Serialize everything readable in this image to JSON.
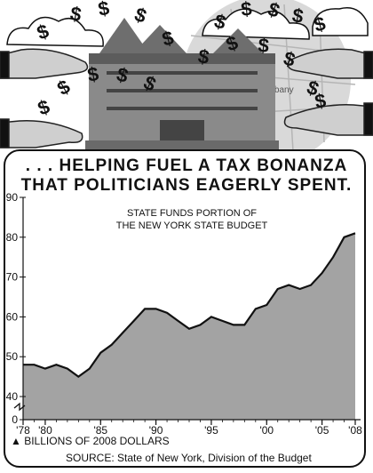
{
  "headline": {
    "line1": ". . . HELPING FUEL A TAX BONANZA",
    "line2": "THAT POLITICIANS EAGERLY SPENT."
  },
  "illustration": {
    "map_label": "Albany",
    "glyph": "$",
    "icons": [
      "hand-offering-icon",
      "dollar-sign-icon",
      "capitol-building-icon",
      "cloud-icon",
      "map-icon"
    ]
  },
  "chart_data": {
    "type": "area",
    "title": "STATE FUNDS PORTION OF",
    "subtitle": "THE NEW YORK STATE BUDGET",
    "x": [
      1978,
      1979,
      1980,
      1981,
      1982,
      1983,
      1984,
      1985,
      1986,
      1987,
      1988,
      1989,
      1990,
      1991,
      1992,
      1993,
      1994,
      1995,
      1996,
      1997,
      1998,
      1999,
      2000,
      2001,
      2002,
      2003,
      2004,
      2005,
      2006,
      2007,
      2008
    ],
    "series": [
      {
        "values": [
          48,
          48,
          47,
          48,
          47,
          45,
          47,
          51,
          53,
          56,
          59,
          62,
          62,
          61,
          59,
          57,
          58,
          60,
          59,
          58,
          58,
          62,
          63,
          67,
          68,
          67,
          68,
          71,
          75,
          80,
          81
        ]
      }
    ],
    "xtick_values": [
      1978,
      1980,
      1985,
      1990,
      1995,
      2000,
      2005,
      2008
    ],
    "xtick_labels": [
      "'78",
      "'80",
      "'85",
      "'90",
      "'95",
      "'00",
      "'05",
      "'08"
    ],
    "ytick_values": [
      0,
      40,
      50,
      60,
      70,
      80,
      90
    ],
    "ytick_labels": [
      "0",
      "40",
      "50",
      "60",
      "70",
      "80",
      "90"
    ],
    "ylim": [
      0,
      90
    ],
    "axis_break": true,
    "grid": false,
    "unit_note": "▲ BILLIONS OF 2008 DOLLARS",
    "source": "SOURCE: State of New York, Division of the Budget",
    "colors": {
      "fill": "#a3a3a3",
      "stroke": "#111111"
    }
  }
}
